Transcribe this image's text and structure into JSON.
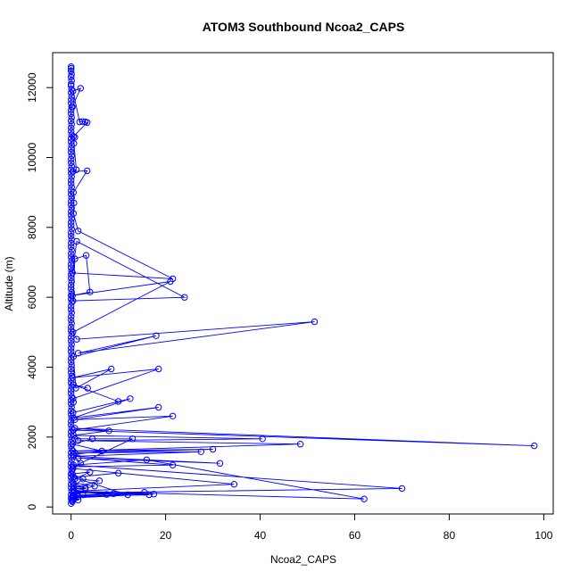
{
  "chart_data": {
    "type": "scatter",
    "title": "ATOM3 Southbound Ncoa2_CAPS",
    "xlabel": "Ncoa2_CAPS",
    "ylabel": "Altitude (m)",
    "xlim": [
      -3.9,
      102
    ],
    "ylim": [
      -200,
      13000
    ],
    "xticks": [
      0,
      20,
      40,
      60,
      80,
      100
    ],
    "yticks": [
      0,
      2000,
      4000,
      6000,
      8000,
      10000,
      12000
    ],
    "grid": false,
    "point_style": "open-circle",
    "series_color": "#0000ff",
    "series": [
      {
        "mode": "lines+markers",
        "points": [
          [
            0.0,
            12600
          ],
          [
            0.0,
            12550
          ],
          [
            0.0,
            12480
          ],
          [
            0.1,
            12380
          ],
          [
            0.0,
            12300
          ],
          [
            0.1,
            12200
          ],
          [
            0.0,
            12100
          ],
          [
            0.0,
            12050
          ],
          [
            0.1,
            11950
          ],
          [
            0.0,
            11850
          ],
          [
            0.1,
            11750
          ],
          [
            0.0,
            11650
          ],
          [
            0.0,
            11550
          ],
          [
            0.1,
            11450
          ],
          [
            0.0,
            11350
          ],
          [
            0.0,
            11250
          ],
          [
            0.1,
            11150
          ],
          [
            0.0,
            11050
          ],
          [
            0.1,
            10950
          ],
          [
            0.0,
            10850
          ],
          [
            0.0,
            10750
          ],
          [
            0.1,
            10650
          ],
          [
            0.0,
            10550
          ],
          [
            0.0,
            10450
          ],
          [
            0.1,
            10350
          ],
          [
            0.0,
            10250
          ],
          [
            0.0,
            10150
          ],
          [
            0.1,
            10050
          ],
          [
            0.0,
            9950
          ],
          [
            0.0,
            9850
          ],
          [
            0.1,
            9750
          ],
          [
            0.0,
            9650
          ],
          [
            0.0,
            9550
          ],
          [
            0.1,
            9450
          ],
          [
            0.0,
            9350
          ],
          [
            0.0,
            9250
          ],
          [
            0.1,
            9150
          ],
          [
            0.0,
            9050
          ],
          [
            0.0,
            8950
          ],
          [
            0.1,
            8850
          ],
          [
            0.0,
            8750
          ],
          [
            0.0,
            8650
          ],
          [
            0.1,
            8550
          ],
          [
            0.0,
            8450
          ],
          [
            0.0,
            8350
          ],
          [
            0.1,
            8250
          ],
          [
            0.0,
            8150
          ],
          [
            0.0,
            8050
          ],
          [
            0.1,
            7950
          ],
          [
            0.0,
            7850
          ],
          [
            0.0,
            7750
          ],
          [
            0.1,
            7650
          ],
          [
            0.0,
            7550
          ],
          [
            0.0,
            7450
          ],
          [
            0.1,
            7350
          ],
          [
            0.0,
            7250
          ],
          [
            0.0,
            7150
          ],
          [
            0.1,
            7050
          ],
          [
            0.0,
            6950
          ],
          [
            0.0,
            6850
          ],
          [
            0.1,
            6750
          ],
          [
            0.0,
            6650
          ],
          [
            0.0,
            6550
          ],
          [
            0.1,
            6450
          ],
          [
            0.0,
            6350
          ],
          [
            0.0,
            6250
          ],
          [
            0.1,
            6150
          ],
          [
            0.0,
            6050
          ],
          [
            0.0,
            5950
          ],
          [
            0.1,
            5850
          ],
          [
            0.0,
            5750
          ],
          [
            0.0,
            5650
          ],
          [
            0.1,
            5550
          ],
          [
            0.0,
            5450
          ],
          [
            0.0,
            5350
          ],
          [
            0.1,
            5250
          ],
          [
            0.0,
            5150
          ],
          [
            0.0,
            5050
          ],
          [
            0.1,
            4950
          ],
          [
            0.0,
            4850
          ],
          [
            0.0,
            4750
          ],
          [
            0.1,
            4650
          ],
          [
            0.0,
            4550
          ],
          [
            0.0,
            4450
          ],
          [
            0.1,
            4350
          ],
          [
            0.0,
            4250
          ],
          [
            0.0,
            4150
          ],
          [
            0.1,
            4050
          ],
          [
            0.0,
            3950
          ],
          [
            0.0,
            3850
          ],
          [
            0.1,
            3750
          ],
          [
            0.0,
            3650
          ],
          [
            0.0,
            3550
          ],
          [
            0.1,
            3450
          ],
          [
            0.0,
            3350
          ],
          [
            0.0,
            3250
          ],
          [
            0.1,
            3150
          ],
          [
            0.0,
            3050
          ],
          [
            0.0,
            2950
          ],
          [
            0.1,
            2850
          ],
          [
            0.0,
            2750
          ],
          [
            0.0,
            2650
          ],
          [
            0.1,
            2550
          ],
          [
            0.0,
            2450
          ],
          [
            0.0,
            2350
          ],
          [
            0.1,
            2250
          ],
          [
            0.0,
            2150
          ],
          [
            0.0,
            2050
          ],
          [
            0.1,
            1950
          ],
          [
            0.0,
            1850
          ],
          [
            0.0,
            1750
          ],
          [
            0.1,
            1650
          ],
          [
            0.0,
            1550
          ],
          [
            0.0,
            1450
          ],
          [
            0.1,
            1350
          ],
          [
            0.0,
            1250
          ],
          [
            0.0,
            1150
          ],
          [
            0.1,
            1050
          ],
          [
            0.0,
            950
          ],
          [
            0.0,
            850
          ],
          [
            0.1,
            750
          ],
          [
            0.0,
            650
          ],
          [
            0.0,
            550
          ],
          [
            0.1,
            450
          ],
          [
            0.0,
            350
          ],
          [
            0.0,
            250
          ],
          [
            0.1,
            180
          ],
          [
            0.0,
            100
          ]
        ]
      },
      {
        "mode": "lines+markers",
        "points": [
          [
            0.3,
            11450
          ],
          [
            2.0,
            11980
          ],
          [
            0.4,
            11900
          ],
          [
            1.8,
            11020
          ],
          [
            2.4,
            11030
          ],
          [
            3.0,
            11020
          ],
          [
            3.4,
            11000
          ],
          [
            0.5,
            10600
          ],
          [
            0.8,
            10580
          ],
          [
            0.6,
            10400
          ],
          [
            1.1,
            9650
          ],
          [
            0.4,
            9600
          ],
          [
            3.4,
            9620
          ],
          [
            0.5,
            9000
          ],
          [
            0.6,
            8700
          ],
          [
            0.5,
            8400
          ],
          [
            1.5,
            7900
          ],
          [
            21.5,
            6530
          ],
          [
            0.3,
            6700
          ],
          [
            1.2,
            7600
          ],
          [
            24.0,
            6000
          ],
          [
            0.4,
            5900
          ],
          [
            0.8,
            7100
          ],
          [
            3.2,
            7200
          ],
          [
            4.0,
            6150
          ],
          [
            0.3,
            6050
          ],
          [
            21.0,
            6450
          ],
          [
            0.4,
            5000
          ],
          [
            1.2,
            4800
          ],
          [
            51.5,
            5300
          ],
          [
            1.5,
            4400
          ],
          [
            18.0,
            4900
          ],
          [
            0.5,
            4300
          ],
          [
            1.0,
            3400
          ],
          [
            8.5,
            3950
          ],
          [
            0.3,
            3700
          ],
          [
            18.5,
            3950
          ],
          [
            0.4,
            3100
          ],
          [
            0.5,
            3000
          ]
        ]
      },
      {
        "mode": "lines+markers",
        "points": [
          [
            3.5,
            3400
          ],
          [
            0.5,
            3500
          ],
          [
            10.0,
            3020
          ],
          [
            0.4,
            2700
          ],
          [
            12.5,
            3100
          ],
          [
            0.5,
            2550
          ],
          [
            18.5,
            2850
          ],
          [
            0.8,
            2500
          ],
          [
            21.5,
            2600
          ],
          [
            0.5,
            2200
          ],
          [
            98.0,
            1750
          ],
          [
            0.8,
            2250
          ],
          [
            8.0,
            2180
          ],
          [
            0.5,
            2050
          ],
          [
            40.5,
            1950
          ],
          [
            1.5,
            1900
          ],
          [
            48.5,
            1800
          ],
          [
            0.4,
            1600
          ],
          [
            30.0,
            1650
          ],
          [
            0.8,
            1550
          ],
          [
            27.5,
            1580
          ],
          [
            0.5,
            1450
          ],
          [
            31.5,
            1250
          ],
          [
            1.5,
            1400
          ],
          [
            21.5,
            1200
          ],
          [
            0.4,
            1150
          ],
          [
            13.0,
            1950
          ],
          [
            0.8,
            1950
          ],
          [
            4.5,
            1950
          ],
          [
            0.3,
            1800
          ],
          [
            6.5,
            1600
          ],
          [
            0.5,
            1500
          ],
          [
            2.0,
            1250
          ],
          [
            0.4,
            1100
          ],
          [
            34.5,
            650
          ],
          [
            0.6,
            450
          ],
          [
            62.0,
            230
          ],
          [
            16.0,
            1350
          ],
          [
            0.5,
            1200
          ],
          [
            70.0,
            530
          ],
          [
            0.6,
            400
          ]
        ]
      },
      {
        "mode": "lines+markers",
        "points": [
          [
            10.0,
            970
          ],
          [
            0.5,
            850
          ],
          [
            12.0,
            350
          ],
          [
            0.4,
            300
          ],
          [
            16.5,
            350
          ],
          [
            0.5,
            420
          ],
          [
            17.5,
            370
          ],
          [
            0.3,
            260
          ],
          [
            15.5,
            420
          ],
          [
            0.4,
            330
          ],
          [
            9.0,
            380
          ],
          [
            0.5,
            320
          ],
          [
            7.5,
            360
          ],
          [
            0.6,
            450
          ],
          [
            5.0,
            600
          ],
          [
            0.4,
            700
          ],
          [
            3.0,
            520
          ],
          [
            0.5,
            550
          ],
          [
            6.0,
            750
          ],
          [
            0.8,
            800
          ],
          [
            4.0,
            1000
          ],
          [
            0.3,
            950
          ],
          [
            2.5,
            800
          ],
          [
            0.6,
            600
          ],
          [
            3.0,
            550
          ],
          [
            0.5,
            500
          ],
          [
            1.5,
            300
          ],
          [
            0.4,
            200
          ],
          [
            2.5,
            350
          ],
          [
            0.3,
            150
          ],
          [
            1.5,
            200
          ],
          [
            0.5,
            250
          ]
        ]
      }
    ]
  }
}
